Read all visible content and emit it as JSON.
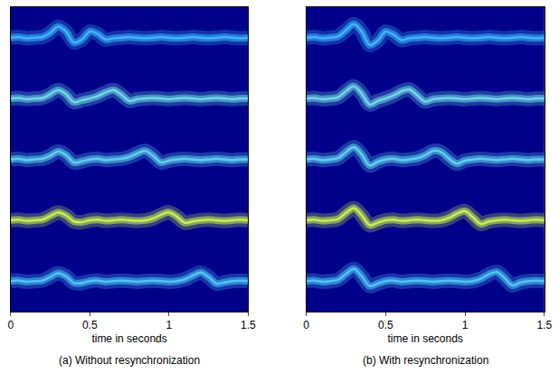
{
  "chart_data": [
    {
      "type": "line",
      "title": "(a) Without resynchronization",
      "xlabel": "time in seconds",
      "x": [
        0,
        0.05,
        0.1,
        0.15,
        0.2,
        0.25,
        0.3,
        0.35,
        0.4,
        0.45,
        0.5,
        0.55,
        0.6,
        0.65,
        0.7,
        0.75,
        0.8,
        0.85,
        0.9,
        0.95,
        1,
        1.05,
        1.1,
        1.15,
        1.2,
        1.25,
        1.3,
        1.35,
        1.4,
        1.45,
        1.5
      ],
      "xlim": [
        0,
        1.5
      ],
      "xticks": [
        0,
        0.5,
        1,
        1.5
      ],
      "ylim": [
        0.5,
        5.5
      ],
      "tick_labels": "x",
      "series": [
        {
          "color": "#3fb6ff",
          "values": [
            5,
            5.01,
            4.99,
            5,
            5.01,
            5.08,
            5.18,
            5.1,
            4.92,
            4.97,
            5.1,
            5.06,
            4.97,
            4.99,
            5,
            5.01,
            5,
            4.99,
            5,
            5.01,
            5,
            4.99,
            5,
            5.01,
            5,
            4.99,
            5,
            5.01,
            5,
            4.99,
            5
          ]
        },
        {
          "color": "#6fd8e8",
          "values": [
            4,
            4.01,
            3.99,
            4,
            4.01,
            4.07,
            4.14,
            4.07,
            3.94,
            3.97,
            4,
            4.04,
            4.1,
            4.14,
            4.06,
            3.96,
            3.99,
            4,
            4.01,
            4,
            3.99,
            4,
            4.01,
            4,
            3.99,
            4,
            4.01,
            4,
            3.99,
            4,
            4
          ]
        },
        {
          "color": "#5fcff0",
          "values": [
            3,
            3.01,
            2.99,
            3,
            3.01,
            3.06,
            3.13,
            3.07,
            2.95,
            2.97,
            3,
            3.01,
            2.99,
            3,
            3.01,
            3.04,
            3.1,
            3.14,
            3.06,
            2.95,
            2.98,
            3,
            3.01,
            3,
            2.99,
            3,
            3.01,
            3,
            2.99,
            3,
            3
          ]
        },
        {
          "color": "#c8f050",
          "values": [
            2,
            2.01,
            1.99,
            2,
            2.01,
            2.07,
            2.13,
            2.08,
            1.98,
            1.97,
            2,
            2.01,
            1.99,
            2,
            2.01,
            2,
            1.99,
            2,
            2.03,
            2.09,
            2.13,
            2.06,
            1.96,
            1.98,
            2,
            2.01,
            2,
            1.99,
            2,
            2.01,
            2
          ]
        },
        {
          "color": "#4fc4f8",
          "values": [
            1,
            1.01,
            0.99,
            1,
            1.01,
            1.07,
            1.13,
            1.08,
            0.97,
            0.97,
            1,
            1.01,
            0.99,
            1,
            1.01,
            1,
            0.99,
            1,
            1.01,
            1,
            0.99,
            1,
            1.03,
            1.09,
            1.14,
            1.07,
            0.96,
            0.98,
            1,
            1.01,
            1
          ]
        }
      ]
    },
    {
      "type": "line",
      "title": "(b) With resynchronization",
      "xlabel": "time in seconds",
      "x": [
        0,
        0.05,
        0.1,
        0.15,
        0.2,
        0.25,
        0.3,
        0.35,
        0.4,
        0.45,
        0.5,
        0.55,
        0.6,
        0.65,
        0.7,
        0.75,
        0.8,
        0.85,
        0.9,
        0.95,
        1,
        1.05,
        1.1,
        1.15,
        1.2,
        1.25,
        1.3,
        1.35,
        1.4,
        1.45,
        1.5
      ],
      "xlim": [
        0,
        1.5
      ],
      "xticks": [
        0,
        0.5,
        1,
        1.5
      ],
      "ylim": [
        0.5,
        5.5
      ],
      "tick_labels": "x",
      "series": [
        {
          "color": "#3fb6ff",
          "values": [
            5,
            5.01,
            4.99,
            5,
            5.02,
            5.12,
            5.22,
            5.1,
            4.88,
            4.95,
            5.1,
            5.05,
            4.96,
            4.99,
            5,
            5.01,
            5,
            4.99,
            5,
            5.01,
            5,
            4.99,
            5,
            5.01,
            5,
            4.99,
            5,
            5.01,
            5,
            4.99,
            5
          ]
        },
        {
          "color": "#6fd8e8",
          "values": [
            4,
            4.01,
            3.99,
            4,
            4.02,
            4.12,
            4.2,
            4.08,
            3.9,
            3.96,
            4,
            4.05,
            4.12,
            4.15,
            4.05,
            3.95,
            3.99,
            4,
            4.01,
            4,
            3.99,
            4,
            4.01,
            4,
            3.99,
            4,
            4.01,
            4,
            3.99,
            4,
            4
          ]
        },
        {
          "color": "#5fcff0",
          "values": [
            3,
            3.01,
            2.99,
            3,
            3.02,
            3.12,
            3.2,
            3.08,
            2.9,
            2.96,
            3,
            3.01,
            2.99,
            3,
            3.02,
            3.07,
            3.14,
            3.12,
            3.01,
            2.93,
            2.98,
            3,
            3.01,
            3,
            2.99,
            3,
            3.01,
            3,
            2.99,
            3,
            3
          ]
        },
        {
          "color": "#c8f050",
          "values": [
            2,
            2.01,
            1.99,
            2,
            2.02,
            2.12,
            2.2,
            2.08,
            1.92,
            1.96,
            2,
            2.01,
            1.99,
            2,
            2.01,
            2,
            1.99,
            2,
            2.04,
            2.11,
            2.15,
            2.05,
            1.94,
            1.98,
            2,
            2.01,
            2,
            1.99,
            2,
            2.01,
            2
          ]
        },
        {
          "color": "#4fc4f8",
          "values": [
            1,
            1.01,
            0.99,
            1,
            1.02,
            1.12,
            1.2,
            1.08,
            0.92,
            0.96,
            1,
            1.01,
            0.99,
            1,
            1.01,
            1,
            0.99,
            1,
            1.01,
            1,
            0.99,
            1,
            1.04,
            1.11,
            1.15,
            1.05,
            0.93,
            0.98,
            1,
            1.01,
            1
          ]
        }
      ]
    }
  ]
}
